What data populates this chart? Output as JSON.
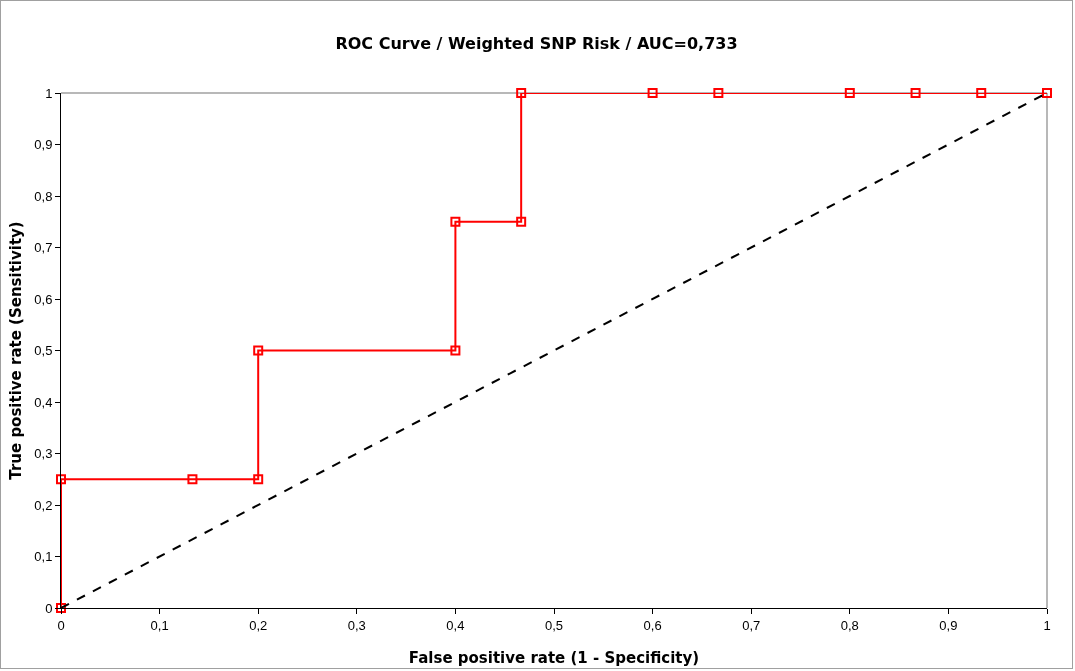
{
  "chart_data": {
    "type": "line",
    "title": "ROC Curve / Weighted SNP Risk / AUC=0,733",
    "xlabel": "False positive rate (1 - Specificity)",
    "ylabel": "True positive rate (Sensitivity)",
    "xlim": [
      0,
      1
    ],
    "ylim": [
      0,
      1
    ],
    "xticks": [
      0,
      {
        "value": 0.1,
        "label": "0,1"
      },
      {
        "value": 0.2,
        "label": "0,2"
      },
      {
        "value": 0.3,
        "label": "0,3"
      },
      {
        "value": 0.4,
        "label": "0,4"
      },
      {
        "value": 0.5,
        "label": "0,5"
      },
      {
        "value": 0.6,
        "label": "0,6"
      },
      {
        "value": 0.7,
        "label": "0,7"
      },
      {
        "value": 0.8,
        "label": "0,8"
      },
      {
        "value": 0.9,
        "label": "0,9"
      },
      1
    ],
    "yticks": [
      0,
      {
        "value": 0.1,
        "label": "0,1"
      },
      {
        "value": 0.2,
        "label": "0,2"
      },
      {
        "value": 0.3,
        "label": "0,3"
      },
      {
        "value": 0.4,
        "label": "0,4"
      },
      {
        "value": 0.5,
        "label": "0,5"
      },
      {
        "value": 0.6,
        "label": "0,6"
      },
      {
        "value": 0.7,
        "label": "0,7"
      },
      {
        "value": 0.8,
        "label": "0,8"
      },
      {
        "value": 0.9,
        "label": "0,9"
      },
      1
    ],
    "grid": false,
    "series": [
      {
        "color": "#ff0000",
        "marker": "square",
        "line_style": "solid",
        "x": [
          0,
          0,
          0.1333,
          0.2,
          0.2,
          0.4,
          0.4,
          0.4667,
          0.4667,
          0.6,
          0.6667,
          0.8,
          0.8667,
          0.9333,
          1
        ],
        "values": [
          0,
          0.25,
          0.25,
          0.25,
          0.5,
          0.5,
          0.75,
          0.75,
          1,
          1,
          1,
          1,
          1,
          1,
          1
        ]
      },
      {
        "color": "#000000",
        "marker": "none",
        "line_style": "dashed",
        "x": [
          0,
          1
        ],
        "values": [
          0,
          1
        ]
      }
    ]
  }
}
